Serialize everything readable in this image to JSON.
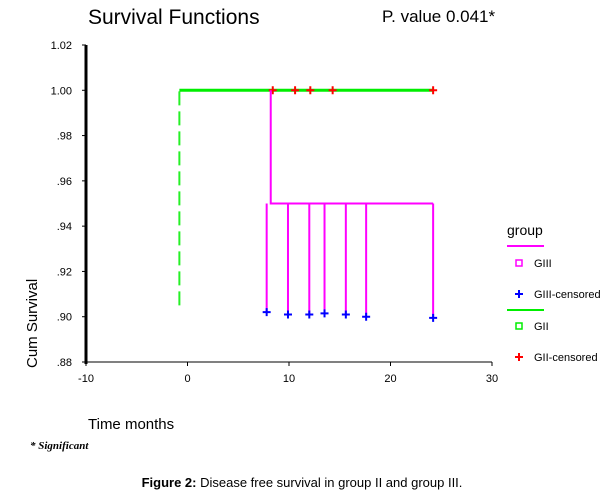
{
  "chart_data": {
    "type": "line",
    "title": "Survival Functions",
    "annotation": "P. value 0.041*",
    "xlabel": "Time months",
    "ylabel": "Cum Survival",
    "xlim": [
      -10,
      30
    ],
    "ylim": [
      0.88,
      1.02
    ],
    "xticks": [
      "-10",
      "0",
      "10",
      "20",
      "30"
    ],
    "yticks": [
      "1.02",
      "1.00",
      ".98",
      ".96",
      ".94",
      ".92",
      ".90",
      ".88"
    ],
    "grid": false,
    "legend_title": "group",
    "legend_position": "right",
    "series": [
      {
        "name": "GII",
        "color": "#00ee00",
        "steps": [
          [
            -0.8,
            0.905
          ],
          [
            -0.8,
            1.0
          ],
          [
            24.2,
            1.0
          ]
        ],
        "dashed_start": true
      },
      {
        "name": "GII-censored",
        "color": "#ff0000",
        "marker": "plus",
        "points": [
          [
            8.4,
            1.0
          ],
          [
            10.6,
            1.0
          ],
          [
            12.1,
            1.0
          ],
          [
            14.3,
            1.0
          ],
          [
            24.2,
            1.0
          ]
        ]
      },
      {
        "name": "GIII",
        "color": "#ff00ff",
        "steps": [
          [
            8.2,
            1.0
          ],
          [
            8.2,
            0.95
          ],
          [
            24.2,
            0.95
          ]
        ],
        "drops": [
          [
            7.8,
            0.902
          ],
          [
            9.9,
            0.901
          ],
          [
            12.0,
            0.901
          ],
          [
            13.5,
            0.9015
          ],
          [
            15.6,
            0.901
          ],
          [
            17.6,
            0.9
          ],
          [
            24.2,
            0.8995
          ]
        ]
      },
      {
        "name": "GIII-censored",
        "color": "#0000ff",
        "marker": "plus",
        "points": [
          [
            7.8,
            0.902
          ],
          [
            9.9,
            0.901
          ],
          [
            12.0,
            0.901
          ],
          [
            13.5,
            0.9015
          ],
          [
            15.6,
            0.901
          ],
          [
            17.6,
            0.9
          ],
          [
            24.2,
            0.8995
          ]
        ]
      }
    ]
  },
  "footnote": "* Significant",
  "caption_bold": "Figure 2:",
  "caption_text": " Disease free survival in group II and group III."
}
